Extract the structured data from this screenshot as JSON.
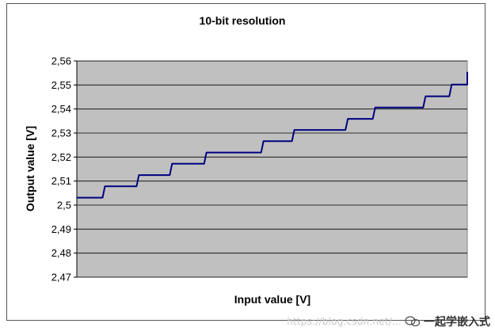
{
  "chart_data": {
    "type": "line",
    "title": "10-bit resolution",
    "xlabel": "Input value [V]",
    "ylabel": "Output value [V]",
    "ylim": [
      2.47,
      2.56
    ],
    "yticks": [
      "2,47",
      "2,48",
      "2,49",
      "2,5",
      "2,51",
      "2,52",
      "2,53",
      "2,54",
      "2,55",
      "2,56"
    ],
    "grid": true,
    "plot_background": "#c0c0c0",
    "line_color": "#000080",
    "series": [
      {
        "steps": [
          {
            "x_start": 0.0,
            "x_end": 0.066,
            "y": 2.5031
          },
          {
            "x_start": 0.066,
            "x_end": 0.153,
            "y": 2.5078
          },
          {
            "x_start": 0.153,
            "x_end": 0.238,
            "y": 2.5125
          },
          {
            "x_start": 0.238,
            "x_end": 0.326,
            "y": 2.5172
          },
          {
            "x_start": 0.326,
            "x_end": 0.472,
            "y": 2.5219
          },
          {
            "x_start": 0.472,
            "x_end": 0.551,
            "y": 2.5266
          },
          {
            "x_start": 0.551,
            "x_end": 0.688,
            "y": 2.5313
          },
          {
            "x_start": 0.688,
            "x_end": 0.758,
            "y": 2.5359
          },
          {
            "x_start": 0.758,
            "x_end": 0.887,
            "y": 2.5406
          },
          {
            "x_start": 0.887,
            "x_end": 0.954,
            "y": 2.5453
          },
          {
            "x_start": 0.954,
            "x_end": 1.0,
            "y": 2.5502
          }
        ],
        "end_y": 2.5555
      }
    ]
  },
  "watermark": {
    "url": "https://blog.csdn.net/...",
    "brand": "一起学嵌入式",
    "icon": "wechat-icon"
  }
}
